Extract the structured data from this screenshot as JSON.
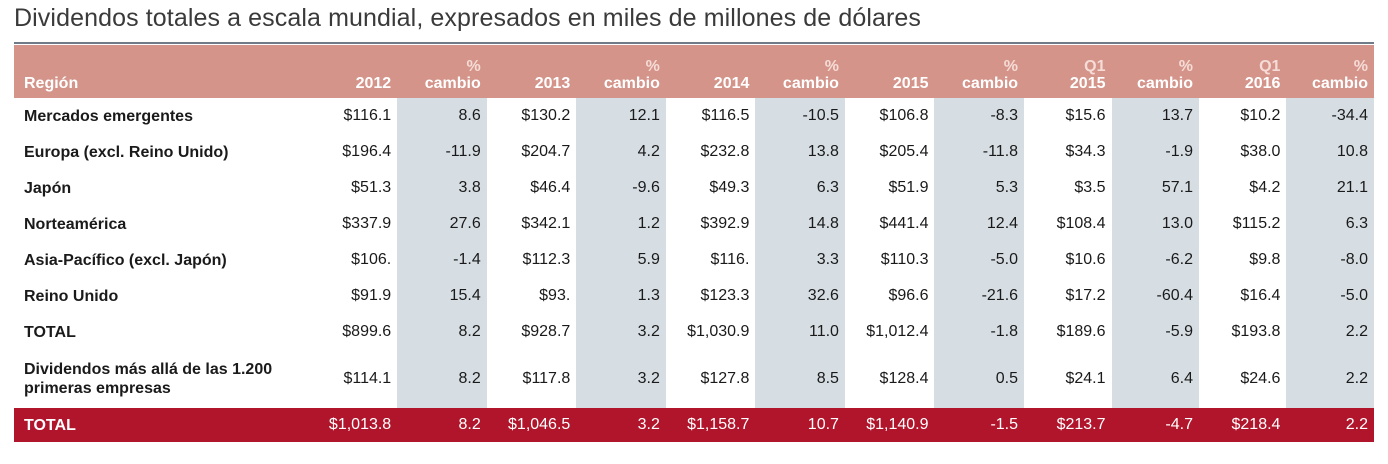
{
  "title": "Dividendos totales a escala mundial, expresados en miles de millones de dólares",
  "chart_data": {
    "type": "table",
    "columns": [
      {
        "l1": "",
        "l2": "Región"
      },
      {
        "l1": "",
        "l2": "2012"
      },
      {
        "l1": "%",
        "l2": "cambio"
      },
      {
        "l1": "",
        "l2": "2013"
      },
      {
        "l1": "%",
        "l2": "cambio"
      },
      {
        "l1": "",
        "l2": "2014"
      },
      {
        "l1": "%",
        "l2": "cambio"
      },
      {
        "l1": "",
        "l2": "2015"
      },
      {
        "l1": "%",
        "l2": "cambio"
      },
      {
        "l1": "Q1",
        "l2": "2015"
      },
      {
        "l1": "%",
        "l2": "cambio"
      },
      {
        "l1": "Q1",
        "l2": "2016"
      },
      {
        "l1": "%",
        "l2": "cambio"
      }
    ],
    "rows": [
      [
        "Mercados emergentes",
        "$116.1",
        "8.6",
        "$130.2",
        "12.1",
        "$116.5",
        "-10.5",
        "$106.8",
        "-8.3",
        "$15.6",
        "13.7",
        "$10.2",
        "-34.4"
      ],
      [
        "Europa (excl. Reino Unido)",
        "$196.4",
        "-11.9",
        "$204.7",
        "4.2",
        "$232.8",
        "13.8",
        "$205.4",
        "-11.8",
        "$34.3",
        "-1.9",
        "$38.0",
        "10.8"
      ],
      [
        "Japón",
        "$51.3",
        "3.8",
        "$46.4",
        "-9.6",
        "$49.3",
        "6.3",
        "$51.9",
        "5.3",
        "$3.5",
        "57.1",
        "$4.2",
        "21.1"
      ],
      [
        "Norteamérica",
        "$337.9",
        "27.6",
        "$342.1",
        "1.2",
        "$392.9",
        "14.8",
        "$441.4",
        "12.4",
        "$108.4",
        "13.0",
        "$115.2",
        "6.3"
      ],
      [
        "Asia-Pacífico (excl. Japón)",
        "$106.",
        "-1.4",
        "$112.3",
        "5.9",
        "$116.",
        "3.3",
        "$110.3",
        "-5.0",
        "$10.6",
        "-6.2",
        "$9.8",
        "-8.0"
      ],
      [
        "Reino Unido",
        "$91.9",
        "15.4",
        "$93.",
        "1.3",
        "$123.3",
        "32.6",
        "$96.6",
        "-21.6",
        "$17.2",
        "-60.4",
        "$16.4",
        "-5.0"
      ],
      [
        "TOTAL",
        "$899.6",
        "8.2",
        "$928.7",
        "3.2",
        "$1,030.9",
        "11.0",
        "$1,012.4",
        "-1.8",
        "$189.6",
        "-5.9",
        "$193.8",
        "2.2"
      ],
      [
        "Dividendos más allá de las 1.200 primeras empresas",
        "$114.1",
        "8.2",
        "$117.8",
        "3.2",
        "$127.8",
        "8.5",
        "$128.4",
        "0.5",
        "$24.1",
        "6.4",
        "$24.6",
        "2.2"
      ],
      [
        "TOTAL",
        "$1,013.8",
        "8.2",
        "$1,046.5",
        "3.2",
        "$1,158.7",
        "10.7",
        "$1,140.9",
        "-1.5",
        "$213.7",
        "-4.7",
        "$218.4",
        "2.2"
      ]
    ]
  },
  "colors": {
    "header_bg": "#d4948a",
    "pct_column_bg": "#d6dee4",
    "grand_total_bg": "#b0152b"
  }
}
